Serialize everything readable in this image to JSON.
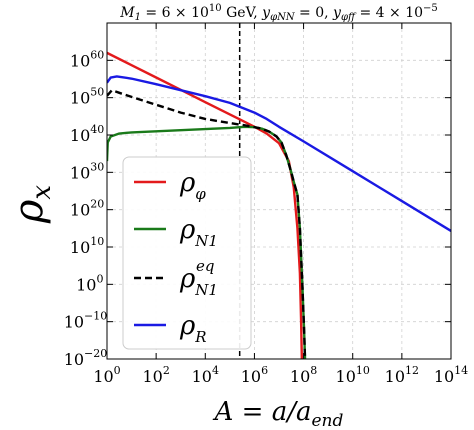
{
  "chart_data": {
    "type": "line",
    "title": "M_1 = 6 × 10^10 GeV, y_φNN = 0, y_φff = 4 × 10^-5",
    "title_parts": {
      "m1": "M",
      "m1_sub": "1",
      "m1_val": " = 6 × 10",
      "m1_exp": "10",
      "gev": " GeV, ",
      "y1": "y",
      "y1_sub": "φNN",
      "y1_val": " = 0, ",
      "y2": "y",
      "y2_sub": "φff",
      "y2_val": " = 4 × 10",
      "y2_exp": "−5"
    },
    "xlabel": "A = a/a_end",
    "xlabel_parts": {
      "main": "A = a/a",
      "sub": "end"
    },
    "ylabel": "ρ_x",
    "ylabel_parts": {
      "main": "ρ",
      "sub": "x"
    },
    "xscale": "log",
    "yscale": "log",
    "xlim_exp": [
      0,
      14
    ],
    "ylim_exp": [
      -20,
      70
    ],
    "xticks": [
      {
        "exp": 0,
        "base": "10",
        "label": "0"
      },
      {
        "exp": 2,
        "base": "10",
        "label": "2"
      },
      {
        "exp": 4,
        "base": "10",
        "label": "4"
      },
      {
        "exp": 6,
        "base": "10",
        "label": "6"
      },
      {
        "exp": 8,
        "base": "10",
        "label": "8"
      },
      {
        "exp": 10,
        "base": "10",
        "label": "10"
      },
      {
        "exp": 12,
        "base": "10",
        "label": "12"
      },
      {
        "exp": 14,
        "base": "10",
        "label": "14"
      }
    ],
    "yticks": [
      {
        "exp": -20,
        "base": "10",
        "label": "−20"
      },
      {
        "exp": -10,
        "base": "10",
        "label": "−10"
      },
      {
        "exp": 0,
        "base": "10",
        "label": "0"
      },
      {
        "exp": 10,
        "base": "10",
        "label": "10"
      },
      {
        "exp": 20,
        "base": "10",
        "label": "20"
      },
      {
        "exp": 30,
        "base": "10",
        "label": "30"
      },
      {
        "exp": 40,
        "base": "10",
        "label": "40"
      },
      {
        "exp": 50,
        "base": "10",
        "label": "50"
      },
      {
        "exp": 60,
        "base": "10",
        "label": "60"
      }
    ],
    "grid": true,
    "legend_position": "center-left",
    "vline": {
      "x_exp": 5.4,
      "style": "dashed",
      "color": "#000000"
    },
    "series": [
      {
        "name": "ρ_φ",
        "label_main": "ρ",
        "label_sub": "φ",
        "label_sup": "",
        "color": "#e31a1c",
        "dash": false,
        "points": [
          [
            0,
            62
          ],
          [
            1,
            58.7
          ],
          [
            2,
            55.4
          ],
          [
            3,
            52.1
          ],
          [
            4,
            48.8
          ],
          [
            5,
            45.5
          ],
          [
            5.4,
            44.2
          ],
          [
            6,
            42.2
          ],
          [
            6.5,
            40.4
          ],
          [
            7,
            37.8
          ],
          [
            7.4,
            33
          ],
          [
            7.6,
            26
          ],
          [
            7.75,
            15
          ],
          [
            7.85,
            3
          ],
          [
            7.9,
            -10
          ],
          [
            7.93,
            -20
          ]
        ]
      },
      {
        "name": "ρ_N1",
        "label_main": "ρ",
        "label_sub": "N1",
        "label_sup": "",
        "color": "#1a7a1a",
        "dash": false,
        "points": [
          [
            0,
            33
          ],
          [
            0.03,
            38
          ],
          [
            0.15,
            39.6
          ],
          [
            0.5,
            40.4
          ],
          [
            1,
            40.7
          ],
          [
            2,
            41
          ],
          [
            3,
            41.3
          ],
          [
            4,
            41.6
          ],
          [
            5,
            41.9
          ],
          [
            5.6,
            42.2
          ],
          [
            6,
            42.1
          ],
          [
            6.3,
            41.7
          ],
          [
            6.6,
            40.9
          ],
          [
            6.9,
            39.6
          ],
          [
            7.1,
            38
          ],
          [
            7.3,
            34.5
          ],
          [
            7.5,
            30
          ],
          [
            7.6,
            27.5
          ],
          [
            7.75,
            24
          ],
          [
            7.85,
            15
          ],
          [
            7.95,
            0
          ],
          [
            8.02,
            -12
          ],
          [
            8.06,
            -20
          ]
        ]
      },
      {
        "name": "ρ_N1^eq",
        "label_main": "ρ",
        "label_sub": "N1",
        "label_sup": "eq",
        "color": "#000000",
        "dash": true,
        "points": [
          [
            0,
            50.5
          ],
          [
            0.2,
            52
          ],
          [
            0.5,
            51.3
          ],
          [
            1,
            50.2
          ],
          [
            2,
            48.1
          ],
          [
            3,
            46
          ],
          [
            4,
            44.3
          ],
          [
            5,
            43.2
          ],
          [
            5.6,
            42.6
          ],
          [
            6,
            42.1
          ],
          [
            6.3,
            41.7
          ],
          [
            6.6,
            40.9
          ],
          [
            6.9,
            39.6
          ],
          [
            7.1,
            38
          ],
          [
            7.3,
            34.5
          ],
          [
            7.5,
            30
          ],
          [
            7.6,
            27.5
          ],
          [
            7.75,
            24
          ],
          [
            7.85,
            15
          ],
          [
            7.95,
            0
          ],
          [
            8.02,
            -12
          ],
          [
            8.06,
            -20
          ]
        ]
      },
      {
        "name": "ρ_R",
        "label_main": "ρ",
        "label_sub": "R",
        "label_sup": "",
        "color": "#1a1ae3",
        "dash": false,
        "points": [
          [
            0,
            54
          ],
          [
            0.15,
            55.4
          ],
          [
            0.4,
            55.7
          ],
          [
            1,
            55.1
          ],
          [
            2,
            53.6
          ],
          [
            3,
            52
          ],
          [
            4,
            50.4
          ],
          [
            5,
            48.6
          ],
          [
            6,
            46
          ],
          [
            6.5,
            44.3
          ],
          [
            7,
            42.2
          ],
          [
            8,
            38.3
          ],
          [
            10,
            30.3
          ],
          [
            12,
            22.3
          ],
          [
            14,
            14.3
          ]
        ]
      }
    ]
  }
}
